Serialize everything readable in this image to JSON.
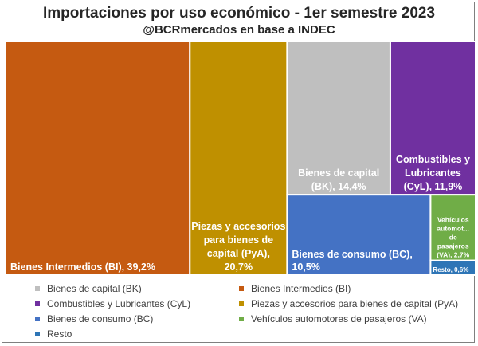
{
  "header": {
    "title": "Importaciones por uso económico - 1er semestre 2023",
    "subtitle": "@BCRmercados en base a INDEC"
  },
  "chart_data": {
    "type": "treemap",
    "title": "Importaciones por uso económico - 1er semestre 2023",
    "subtitle": "@BCRmercados en base a INDEC",
    "unit": "%",
    "legend_position": "bottom",
    "series": [
      {
        "key": "BI",
        "name": "Bienes Intermedios (BI)",
        "label_lines": [
          "Bienes Intermedios (BI), 39,2%"
        ],
        "value": 39.2,
        "color": "#c55a11"
      },
      {
        "key": "PyA",
        "name": "Piezas y accesorios para bienes de capital (PyA)",
        "label_lines": [
          "Piezas y accesorios",
          "para bienes de",
          "capital (PyA),",
          "20,7%"
        ],
        "value": 20.7,
        "color": "#bf9000"
      },
      {
        "key": "BK",
        "name": "Bienes de capital (BK)",
        "label_lines": [
          "Bienes de capital",
          "(BK), 14,4%"
        ],
        "value": 14.4,
        "color": "#bfbfbf"
      },
      {
        "key": "CyL",
        "name": "Combustibles y Lubricantes (CyL)",
        "label_lines": [
          "Combustibles y",
          "Lubricantes",
          "(CyL), 11,9%"
        ],
        "value": 11.9,
        "color": "#7030a0"
      },
      {
        "key": "BC",
        "name": "Bienes de consumo (BC)",
        "label_lines": [
          "Bienes de consumo (BC),",
          "10,5%"
        ],
        "value": 10.5,
        "color": "#4472c4"
      },
      {
        "key": "VA",
        "name": "Vehículos automotores de pasajeros (VA)",
        "label_lines": [
          "Vehículos",
          "automot...",
          "de",
          "pasajeros",
          "(VA), 2,7%"
        ],
        "value": 2.7,
        "color": "#70ad47"
      },
      {
        "key": "R",
        "name": "Resto",
        "label_lines": [
          "Resto, 0,6%"
        ],
        "value": 0.6,
        "color": "#2e75b6"
      }
    ],
    "legend_order": [
      "BK",
      "BI",
      "CyL",
      "PyA",
      "BC",
      "VA",
      "R"
    ]
  }
}
